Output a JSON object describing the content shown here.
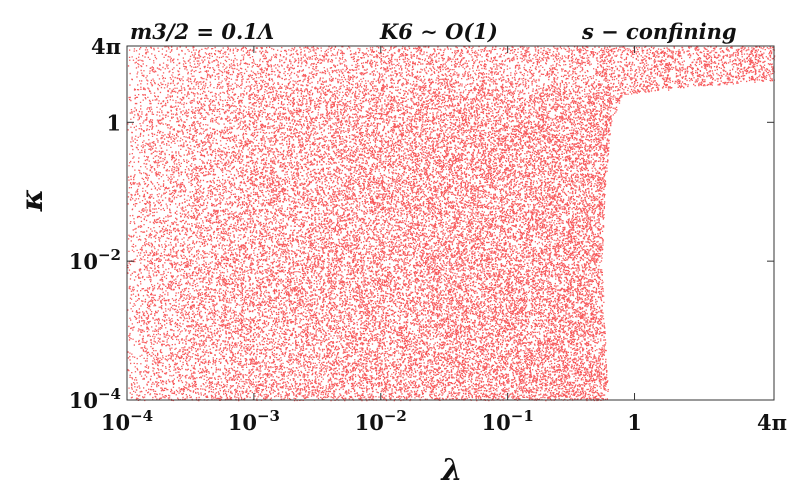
{
  "chart_data": {
    "type": "scatter",
    "title": "",
    "xlabel": "λ",
    "ylabel": "κ",
    "x_scale": "log",
    "y_scale": "log",
    "xlim": [
      0.0001,
      12.566
    ],
    "ylim": [
      0.0001,
      12.566
    ],
    "x_ticks": [
      {
        "value": 0.0001,
        "label": "10−4"
      },
      {
        "value": 0.001,
        "label": "10−3"
      },
      {
        "value": 0.01,
        "label": "10−2"
      },
      {
        "value": 0.1,
        "label": "10−1"
      },
      {
        "value": 1,
        "label": "1"
      },
      {
        "value": 12.566,
        "label": "4π"
      }
    ],
    "y_ticks": [
      {
        "value": 0.0001,
        "label": "10−4"
      },
      {
        "value": 0.01,
        "label": "10−2"
      },
      {
        "value": 1,
        "label": "1"
      },
      {
        "value": 12.566,
        "label": "4π"
      }
    ],
    "annotations": [
      "m3/2 = 0.1Λ",
      "K6 ∼ O(1)",
      "s − confining"
    ],
    "point_color": "#f75a5c",
    "region_boundary": [
      {
        "kappa": 0.0001,
        "lambda_max": 0.62
      },
      {
        "kappa": 0.001,
        "lambda_max": 0.58
      },
      {
        "kappa": 0.01,
        "lambda_max": 0.55
      },
      {
        "kappa": 0.1,
        "lambda_max": 0.58
      },
      {
        "kappa": 1,
        "lambda_max": 0.65
      },
      {
        "kappa": 2.5,
        "lambda_max": 0.8
      },
      {
        "kappa": 3.3,
        "lambda_max": 3.0
      },
      {
        "kappa": 4.0,
        "lambda_max": 12.566
      }
    ],
    "grid": false,
    "legend": "none"
  }
}
